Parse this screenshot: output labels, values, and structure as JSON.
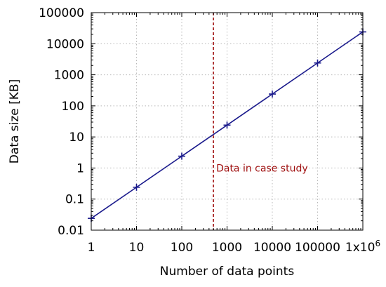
{
  "chart_data": {
    "type": "line",
    "title": "",
    "xlabel": "Number of data points",
    "ylabel": "Data size [KB]",
    "x_scale": "log",
    "y_scale": "log",
    "xlim": [
      1,
      1000000
    ],
    "ylim": [
      0.01,
      100000
    ],
    "grid": true,
    "x_ticks": [
      {
        "value": 1,
        "label": "1"
      },
      {
        "value": 10,
        "label": "10"
      },
      {
        "value": 100,
        "label": "100"
      },
      {
        "value": 1000,
        "label": "1000"
      },
      {
        "value": 10000,
        "label": "10000"
      },
      {
        "value": 100000,
        "label": "100000"
      },
      {
        "value": 1000000,
        "label": "1x10",
        "sup": "6"
      }
    ],
    "y_ticks": [
      {
        "value": 0.01,
        "label": "0.01"
      },
      {
        "value": 0.1,
        "label": "0.1"
      },
      {
        "value": 1,
        "label": "1"
      },
      {
        "value": 10,
        "label": "10"
      },
      {
        "value": 100,
        "label": "100"
      },
      {
        "value": 1000,
        "label": "1000"
      },
      {
        "value": 10000,
        "label": "10000"
      },
      {
        "value": 100000,
        "label": "100000"
      }
    ],
    "series": [
      {
        "color": "#1a1a8c",
        "marker": "plus",
        "x": [
          1,
          10,
          100,
          1000,
          10000,
          100000,
          1000000
        ],
        "y": [
          0.024,
          0.24,
          2.4,
          24,
          240,
          2400,
          24000
        ]
      }
    ],
    "annotations": [
      {
        "type": "vline",
        "x": 500,
        "color": "#a01010",
        "style": "dashed",
        "text": "Data in case study",
        "text_y": 1
      }
    ]
  }
}
